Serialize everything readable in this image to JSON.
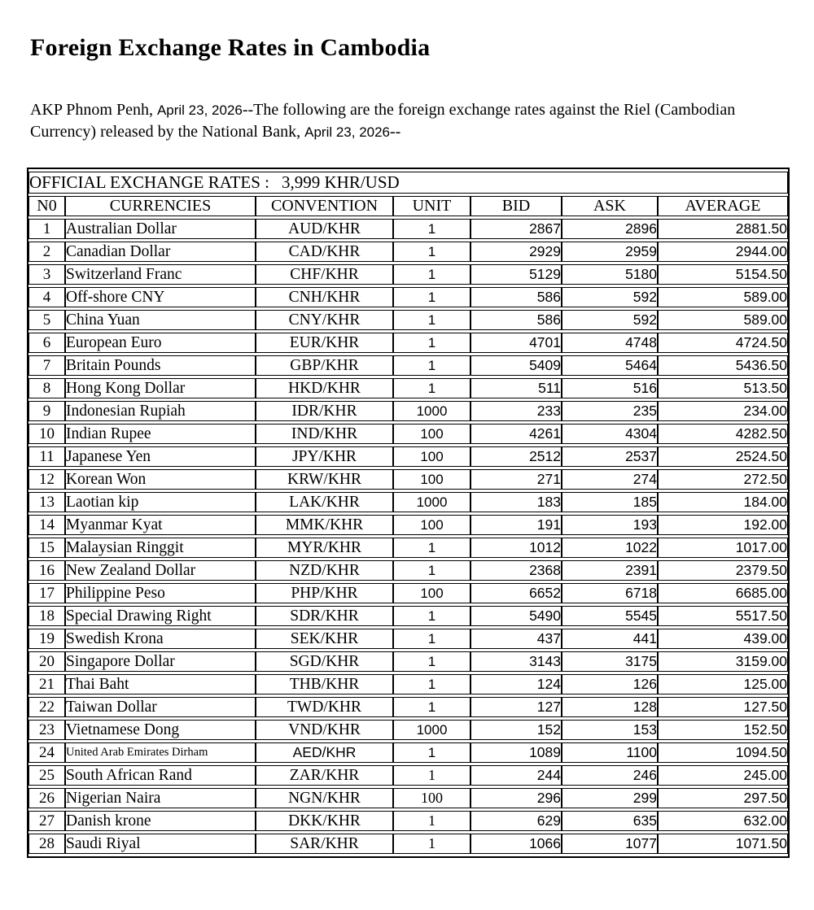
{
  "page": {
    "title": "Foreign Exchange Rates in Cambodia"
  },
  "intro": {
    "segments": [
      {
        "text": "AKP Phnom Penh, ",
        "style": "serif"
      },
      {
        "text": "April 23, 2026",
        "style": "sans"
      },
      {
        "text": "--The following are the foreign exchange rates against the Riel (Cambodian Currency) released by the National Bank, ",
        "style": "serif"
      },
      {
        "text": "April 23, 2026",
        "style": "sans"
      },
      {
        "text": "--",
        "style": "serif"
      }
    ]
  },
  "table": {
    "caption_label": "OFFICIAL EXCHANGE RATES :",
    "caption_value": "3,999 KHR/USD",
    "columns": [
      "N0",
      "CURRENCIES",
      "CONVENTION",
      "UNIT",
      "BID",
      "ASK",
      "AVERAGE"
    ],
    "rows": [
      {
        "no": "1",
        "currency": "Australian Dollar",
        "convention": "AUD/KHR",
        "unit": "1",
        "bid": "2867",
        "ask": "2896",
        "average": "2881.50"
      },
      {
        "no": "2",
        "currency": "Canadian Dollar",
        "convention": "CAD/KHR",
        "unit": "1",
        "bid": "2929",
        "ask": "2959",
        "average": "2944.00"
      },
      {
        "no": "3",
        "currency": "Switzerland Franc",
        "convention": "CHF/KHR",
        "unit": "1",
        "bid": "5129",
        "ask": "5180",
        "average": "5154.50"
      },
      {
        "no": "4",
        "currency": "Off-shore CNY",
        "convention": "CNH/KHR",
        "unit": "1",
        "bid": "586",
        "ask": "592",
        "average": "589.00"
      },
      {
        "no": "5",
        "currency": "China Yuan",
        "convention": "CNY/KHR",
        "unit": "1",
        "bid": "586",
        "ask": "592",
        "average": "589.00"
      },
      {
        "no": "6",
        "currency": "European Euro",
        "convention": "EUR/KHR",
        "unit": "1",
        "bid": "4701",
        "ask": "4748",
        "average": "4724.50"
      },
      {
        "no": "7",
        "currency": "Britain Pounds",
        "convention": "GBP/KHR",
        "unit": "1",
        "bid": "5409",
        "ask": "5464",
        "average": "5436.50"
      },
      {
        "no": "8",
        "currency": "Hong Kong Dollar",
        "convention": "HKD/KHR",
        "unit": "1",
        "bid": "511",
        "ask": "516",
        "average": "513.50"
      },
      {
        "no": "9",
        "currency": "Indonesian Rupiah",
        "convention": "IDR/KHR",
        "unit": "1000",
        "bid": "233",
        "ask": "235",
        "average": "234.00"
      },
      {
        "no": "10",
        "currency": "Indian Rupee",
        "convention": "IND/KHR",
        "unit": "100",
        "bid": "4261",
        "ask": "4304",
        "average": "4282.50"
      },
      {
        "no": "11",
        "currency": "Japanese Yen",
        "convention": "JPY/KHR",
        "unit": "100",
        "bid": "2512",
        "ask": "2537",
        "average": "2524.50"
      },
      {
        "no": "12",
        "currency": "Korean Won",
        "convention": "KRW/KHR",
        "unit": "100",
        "bid": "271",
        "ask": "274",
        "average": "272.50"
      },
      {
        "no": "13",
        "currency": "Laotian kip",
        "convention": "LAK/KHR",
        "unit": "1000",
        "bid": "183",
        "ask": "185",
        "average": "184.00"
      },
      {
        "no": "14",
        "currency": "Myanmar Kyat",
        "convention": "MMK/KHR",
        "unit": "100",
        "bid": "191",
        "ask": "193",
        "average": "192.00"
      },
      {
        "no": "15",
        "currency": "Malaysian Ringgit",
        "convention": "MYR/KHR",
        "unit": "1",
        "bid": "1012",
        "ask": "1022",
        "average": "1017.00"
      },
      {
        "no": "16",
        "currency": "New Zealand Dollar",
        "convention": "NZD/KHR",
        "unit": "1",
        "bid": "2368",
        "ask": "2391",
        "average": "2379.50"
      },
      {
        "no": "17",
        "currency": "Philippine Peso",
        "convention": "PHP/KHR",
        "unit": "100",
        "bid": "6652",
        "ask": "6718",
        "average": "6685.00"
      },
      {
        "no": "18",
        "currency": "Special Drawing Right",
        "convention": "SDR/KHR",
        "unit": "1",
        "bid": "5490",
        "ask": "5545",
        "average": "5517.50"
      },
      {
        "no": "19",
        "currency": "Swedish Krona",
        "convention": "SEK/KHR",
        "unit": "1",
        "bid": "437",
        "ask": "441",
        "average": "439.00"
      },
      {
        "no": "20",
        "currency": "Singapore Dollar",
        "convention": "SGD/KHR",
        "unit": "1",
        "bid": "3143",
        "ask": "3175",
        "average": "3159.00"
      },
      {
        "no": "21",
        "currency": "Thai Baht",
        "convention": "THB/KHR",
        "unit": "1",
        "bid": "124",
        "ask": "126",
        "average": "125.00"
      },
      {
        "no": "22",
        "currency": "Taiwan Dollar",
        "convention": "TWD/KHR",
        "unit": "1",
        "bid": "127",
        "ask": "128",
        "average": "127.50"
      },
      {
        "no": "23",
        "currency": "Vietnamese Dong",
        "convention": "VND/KHR",
        "unit": "1000",
        "bid": "152",
        "ask": "153",
        "average": "152.50"
      },
      {
        "no": "24",
        "currency": "United Arab Emirates Dirham",
        "convention": "AED/KHR",
        "unit": "1",
        "bid": "1089",
        "ask": "1100",
        "average": "1094.50",
        "small_name": true,
        "sans_convention": true
      },
      {
        "no": "25",
        "currency": "South African Rand",
        "convention": "ZAR/KHR",
        "unit": "1",
        "bid": "244",
        "ask": "246",
        "average": "245.00",
        "serif_unit": true
      },
      {
        "no": "26",
        "currency": "Nigerian Naira",
        "convention": "NGN/KHR",
        "unit": "100",
        "bid": "296",
        "ask": "299",
        "average": "297.50",
        "serif_unit": true
      },
      {
        "no": "27",
        "currency": "Danish krone",
        "convention": "DKK/KHR",
        "unit": "1",
        "bid": "629",
        "ask": "635",
        "average": "632.00",
        "serif_unit": true
      },
      {
        "no": "28",
        "currency": "Saudi Riyal",
        "convention": "SAR/KHR",
        "unit": "1",
        "bid": "1066",
        "ask": "1077",
        "average": "1071.50",
        "serif_unit": true
      }
    ]
  }
}
